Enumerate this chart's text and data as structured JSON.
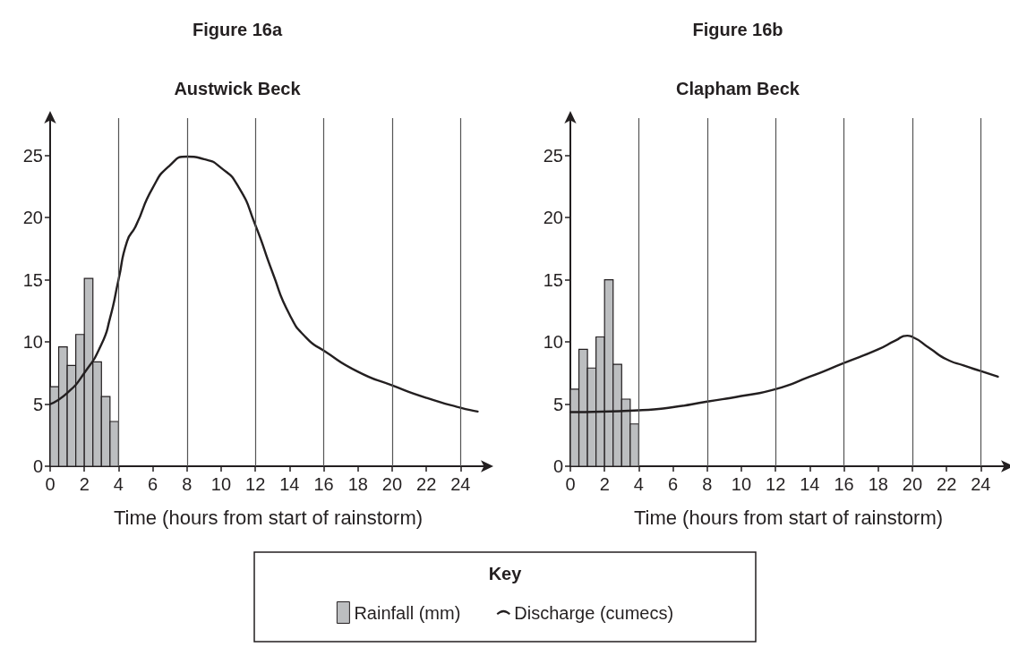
{
  "chart_data": [
    {
      "type": "histogram",
      "title": "Figure 16a",
      "subtitle": "Austwick Beck",
      "xlabel": "Time (hours from start of rainstorm)",
      "legend_title": "Key",
      "legend": "bottom",
      "bins": [
        0,
        0.5,
        1,
        1.5,
        2,
        2.5,
        3,
        3.5,
        4
      ],
      "series": [
        {
          "name": "Rainfall (mm)",
          "color": "#bcbec0",
          "values": [
            6.4,
            9.6,
            8.1,
            10.6,
            15.1,
            8.4,
            5.6,
            3.6
          ]
        },
        {
          "type": "line",
          "name": "Discharge (cumecs)",
          "color": "#231f20",
          "x": [
            0,
            1,
            2,
            3,
            3.5,
            4,
            4.5,
            5,
            6,
            7,
            8,
            9,
            10,
            11,
            12,
            13,
            14,
            15,
            16,
            18,
            20,
            22,
            24,
            25
          ],
          "values": [
            5.0,
            5.9,
            7.5,
            9.8,
            11.9,
            15.0,
            18.1,
            19.3,
            22.4,
            24.2,
            24.9,
            24.7,
            24.0,
            22.5,
            19.4,
            15.6,
            12.2,
            10.3,
            9.3,
            7.6,
            6.5,
            5.5,
            4.7,
            4.4
          ]
        }
      ],
      "xlim": [
        0,
        25.5
      ],
      "xticks": [
        0,
        2,
        4,
        6,
        8,
        10,
        12,
        14,
        16,
        18,
        20,
        22,
        24
      ],
      "ylim": [
        0,
        28
      ],
      "yticks": [
        0,
        5,
        10,
        15,
        20,
        25
      ],
      "ref_lines": [
        {
          "axis": "x",
          "value": 4,
          "color": "#555555"
        },
        {
          "axis": "x",
          "value": 8,
          "color": "#555555"
        },
        {
          "axis": "x",
          "value": 12,
          "color": "#555555"
        },
        {
          "axis": "x",
          "value": 16,
          "color": "#555555"
        },
        {
          "axis": "x",
          "value": 20,
          "color": "#555555"
        },
        {
          "axis": "x",
          "value": 24,
          "color": "#555555"
        }
      ]
    },
    {
      "type": "histogram",
      "title": "Figure 16b",
      "subtitle": "Clapham Beck",
      "xlabel": "Time (hours from start of rainstorm)",
      "bins": [
        0,
        0.5,
        1,
        1.5,
        2,
        2.5,
        3,
        3.5,
        4
      ],
      "series": [
        {
          "color": "#bcbec0",
          "values": [
            6.2,
            9.4,
            7.9,
            10.4,
            15.0,
            8.2,
            5.4,
            3.4
          ]
        },
        {
          "type": "line",
          "color": "#231f20",
          "x": [
            0,
            4,
            6,
            8,
            10,
            12,
            14,
            16,
            18,
            19,
            19.7,
            20,
            21,
            22,
            23,
            24,
            25
          ],
          "values": [
            4.35,
            4.5,
            4.75,
            5.2,
            5.65,
            6.2,
            7.2,
            8.3,
            9.4,
            10.1,
            10.5,
            10.4,
            9.5,
            8.6,
            8.1,
            7.65,
            7.2
          ]
        }
      ],
      "xlim": [
        0,
        25.5
      ],
      "xticks": [
        0,
        2,
        4,
        6,
        8,
        10,
        12,
        14,
        16,
        18,
        20,
        22,
        24
      ],
      "ylim": [
        0,
        28
      ],
      "yticks": [
        0,
        5,
        10,
        15,
        20,
        25
      ],
      "ref_lines": [
        {
          "axis": "x",
          "value": 4,
          "color": "#555555"
        },
        {
          "axis": "x",
          "value": 8,
          "color": "#555555"
        },
        {
          "axis": "x",
          "value": 12,
          "color": "#555555"
        },
        {
          "axis": "x",
          "value": 16,
          "color": "#555555"
        },
        {
          "axis": "x",
          "value": 20,
          "color": "#555555"
        },
        {
          "axis": "x",
          "value": 24,
          "color": "#555555"
        }
      ]
    }
  ]
}
